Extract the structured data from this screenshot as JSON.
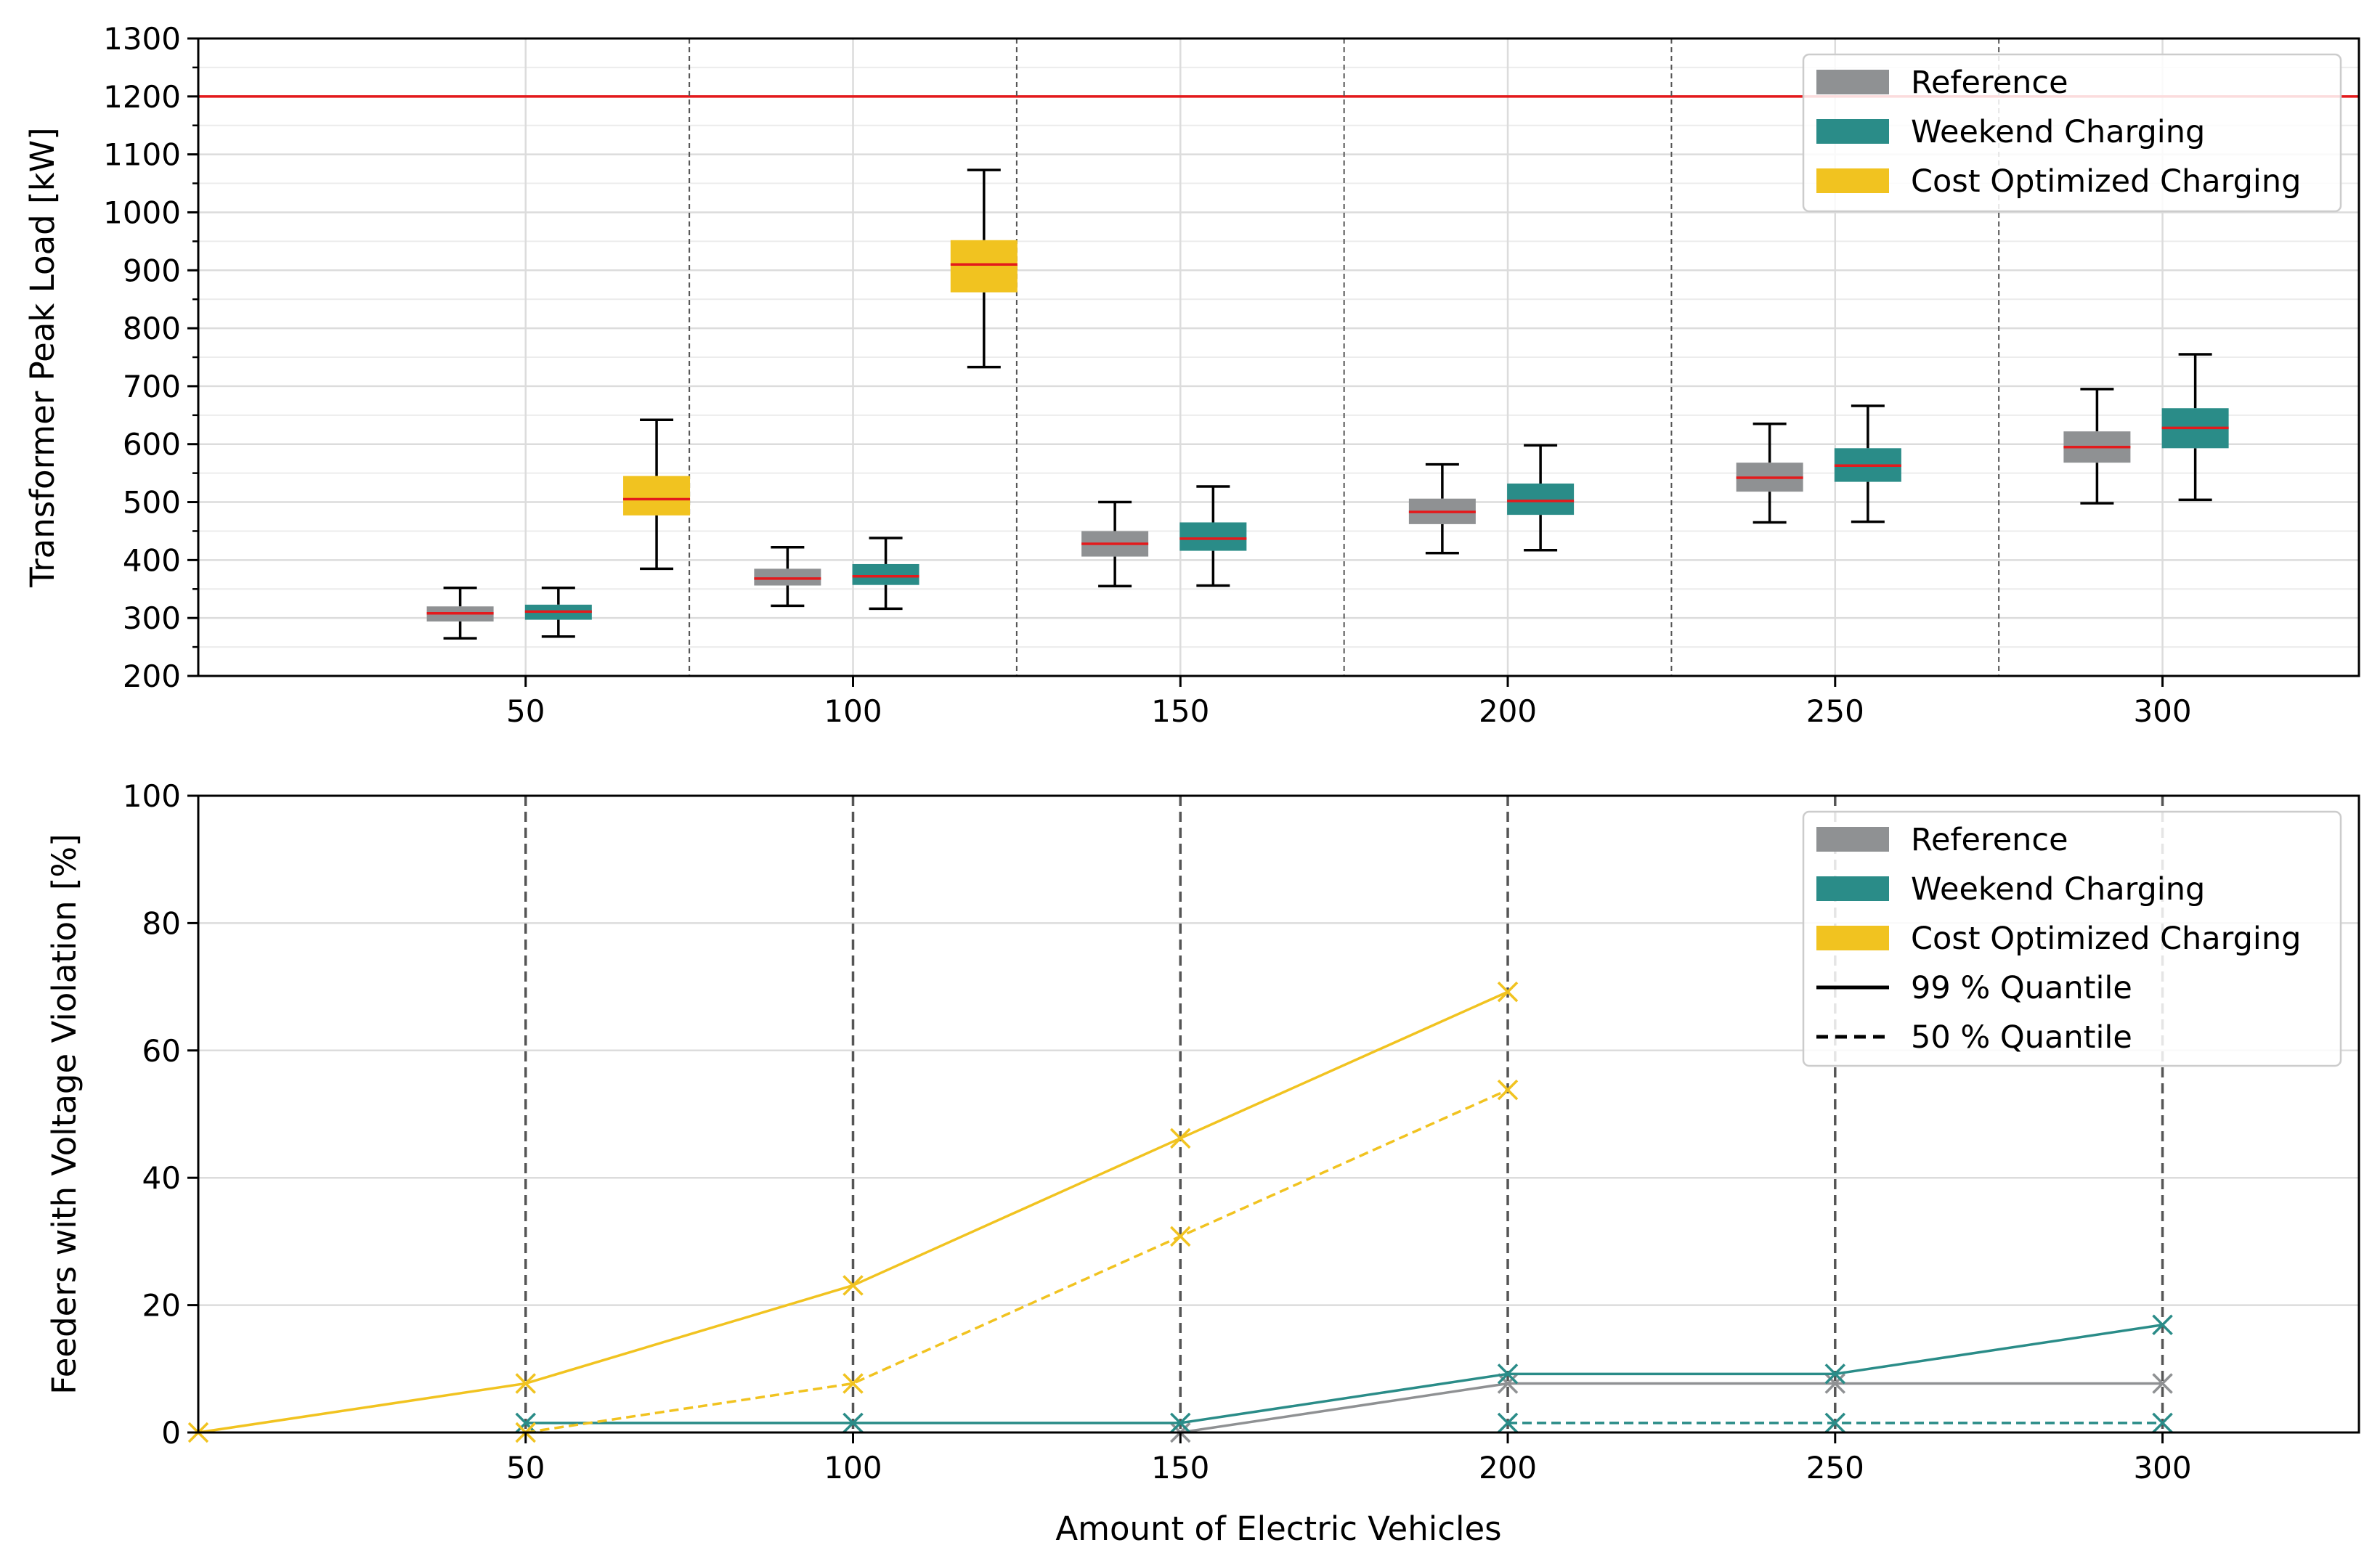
{
  "chart_data": [
    {
      "type": "box",
      "title": "",
      "xlabel": "",
      "ylabel": "Transformer Peak Load [kW]",
      "xlim": [
        0,
        330
      ],
      "ylim": [
        200,
        1300
      ],
      "xticks": [
        "50",
        "100",
        "150",
        "200",
        "250",
        "300"
      ],
      "yticks": [
        "200",
        "300",
        "400",
        "500",
        "600",
        "700",
        "800",
        "900",
        "1000",
        "1100",
        "1200",
        "1300"
      ],
      "group_separators": [
        75,
        125,
        175,
        225,
        275
      ],
      "threshold": {
        "value": 1200,
        "color": "#e31a1c"
      },
      "legend_position": "top-right",
      "series": [
        {
          "name": "Reference",
          "color": "#8f9193",
          "boxes": [
            {
              "x": 40,
              "whislo": 265,
              "q1": 294,
              "med": 308,
              "q3": 320,
              "whishi": 352
            },
            {
              "x": 90,
              "whislo": 321,
              "q1": 356,
              "med": 368,
              "q3": 385,
              "whishi": 422
            },
            {
              "x": 140,
              "whislo": 355,
              "q1": 406,
              "med": 428,
              "q3": 450,
              "whishi": 500
            },
            {
              "x": 190,
              "whislo": 412,
              "q1": 462,
              "med": 483,
              "q3": 506,
              "whishi": 565
            },
            {
              "x": 240,
              "whislo": 465,
              "q1": 518,
              "med": 542,
              "q3": 568,
              "whishi": 635
            },
            {
              "x": 290,
              "whislo": 498,
              "q1": 568,
              "med": 595,
              "q3": 622,
              "whishi": 695
            }
          ]
        },
        {
          "name": "Weekend Charging",
          "color": "#2a8c88",
          "boxes": [
            {
              "x": 55,
              "whislo": 268,
              "q1": 297,
              "med": 311,
              "q3": 323,
              "whishi": 352
            },
            {
              "x": 105,
              "whislo": 316,
              "q1": 357,
              "med": 372,
              "q3": 393,
              "whishi": 438
            },
            {
              "x": 155,
              "whislo": 356,
              "q1": 416,
              "med": 437,
              "q3": 465,
              "whishi": 527
            },
            {
              "x": 205,
              "whislo": 417,
              "q1": 478,
              "med": 502,
              "q3": 532,
              "whishi": 598
            },
            {
              "x": 255,
              "whislo": 466,
              "q1": 535,
              "med": 563,
              "q3": 593,
              "whishi": 666
            },
            {
              "x": 305,
              "whislo": 504,
              "q1": 593,
              "med": 628,
              "q3": 662,
              "whishi": 755
            }
          ]
        },
        {
          "name": "Cost Optimized Charging",
          "color": "#f1c320",
          "boxes": [
            {
              "x": 70,
              "whislo": 385,
              "q1": 477,
              "med": 505,
              "q3": 545,
              "whishi": 642
            },
            {
              "x": 120,
              "whislo": 733,
              "q1": 862,
              "med": 910,
              "q3": 952,
              "whishi": 1073
            }
          ]
        }
      ]
    },
    {
      "type": "line",
      "title": "",
      "xlabel": "Amount of Electric Vehicles",
      "ylabel": "Feeders with Voltage Violation [%]",
      "xlim": [
        0,
        330
      ],
      "ylim": [
        0,
        100
      ],
      "xticks": [
        "50",
        "100",
        "150",
        "200",
        "250",
        "300"
      ],
      "yticks": [
        "0",
        "20",
        "40",
        "60",
        "80",
        "100"
      ],
      "vlines": [
        50,
        100,
        150,
        200,
        250,
        300
      ],
      "legend_position": "top-right",
      "series": [
        {
          "name": "Reference",
          "quantile": "99 % Quantile",
          "color": "#8f9193",
          "style": "solid",
          "x": [
            150,
            200,
            250,
            300
          ],
          "y": [
            0,
            7.7,
            7.7,
            7.7
          ]
        },
        {
          "name": "Weekend Charging",
          "quantile": "99 % Quantile",
          "color": "#2a8c88",
          "style": "solid",
          "x": [
            50,
            100,
            150,
            200,
            250,
            300
          ],
          "y": [
            1.5,
            1.5,
            1.5,
            9.2,
            9.2,
            16.9
          ]
        },
        {
          "name": "Weekend Charging",
          "quantile": "50 % Quantile",
          "color": "#2a8c88",
          "style": "dashed",
          "x": [
            200,
            250,
            300
          ],
          "y": [
            1.5,
            1.5,
            1.5
          ]
        },
        {
          "name": "Cost Optimized Charging",
          "quantile": "99 % Quantile",
          "color": "#f1c320",
          "style": "solid",
          "x": [
            0,
            50,
            100,
            150,
            200
          ],
          "y": [
            0,
            7.7,
            23.1,
            46.2,
            69.2
          ]
        },
        {
          "name": "Cost Optimized Charging",
          "quantile": "50 % Quantile",
          "color": "#f1c320",
          "style": "dashed",
          "x": [
            50,
            100,
            150,
            200
          ],
          "y": [
            0,
            7.7,
            30.8,
            53.8
          ]
        }
      ],
      "legend": [
        {
          "label": "Reference",
          "kind": "patch",
          "color": "#8f9193"
        },
        {
          "label": "Weekend Charging",
          "kind": "patch",
          "color": "#2a8c88"
        },
        {
          "label": "Cost Optimized Charging",
          "kind": "patch",
          "color": "#f1c320"
        },
        {
          "label": "99 % Quantile",
          "kind": "line",
          "style": "solid",
          "color": "#000000"
        },
        {
          "label": "50 % Quantile",
          "kind": "line",
          "style": "dashed",
          "color": "#000000"
        }
      ]
    }
  ]
}
